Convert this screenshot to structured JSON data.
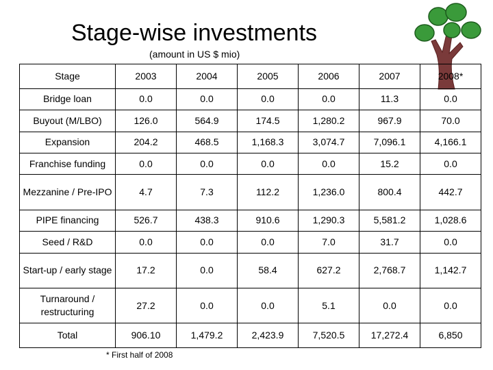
{
  "title": "Stage-wise investments",
  "subtitle": "(amount in US $ mio)",
  "table": {
    "headers": [
      "Stage",
      "2003",
      "2004",
      "2005",
      "2006",
      "2007",
      "2008*"
    ],
    "rows": [
      [
        "Bridge loan",
        "0.0",
        "0.0",
        "0.0",
        "0.0",
        "11.3",
        "0.0"
      ],
      [
        "Buyout (M/LBO)",
        "126.0",
        "564.9",
        "174.5",
        "1,280.2",
        "967.9",
        "70.0"
      ],
      [
        "Expansion",
        "204.2",
        "468.5",
        "1,168.3",
        "3,074.7",
        "7,096.1",
        "4,166.1"
      ],
      [
        "Franchise funding",
        "0.0",
        "0.0",
        "0.0",
        "0.0",
        "15.2",
        "0.0"
      ],
      [
        "Mezzanine / Pre-IPO",
        "4.7",
        "7.3",
        "112.2",
        "1,236.0",
        "800.4",
        "442.7"
      ],
      [
        "PIPE financing",
        "526.7",
        "438.3",
        "910.6",
        "1,290.3",
        "5,581.2",
        "1,028.6"
      ],
      [
        "Seed / R&D",
        "0.0",
        "0.0",
        "0.0",
        "7.0",
        "31.7",
        "0.0"
      ],
      [
        "Start-up / early stage",
        "17.2",
        "0.0",
        "58.4",
        "627.2",
        "2,768.7",
        "1,142.7"
      ],
      [
        "Turnaround / restructuring",
        "27.2",
        "0.0",
        "0.0",
        "5.1",
        "0.0",
        "0.0"
      ],
      [
        "Total",
        "906.10",
        "1,479.2",
        "2,423.9",
        "7,520.5",
        "17,272.4",
        "6,850"
      ]
    ]
  },
  "footnote": "* First half of 2008",
  "logo_icon": "tree-icon",
  "colors": {
    "leaf": "#3a9a3a",
    "trunk": "#7a3a3a",
    "border": "#000000"
  }
}
